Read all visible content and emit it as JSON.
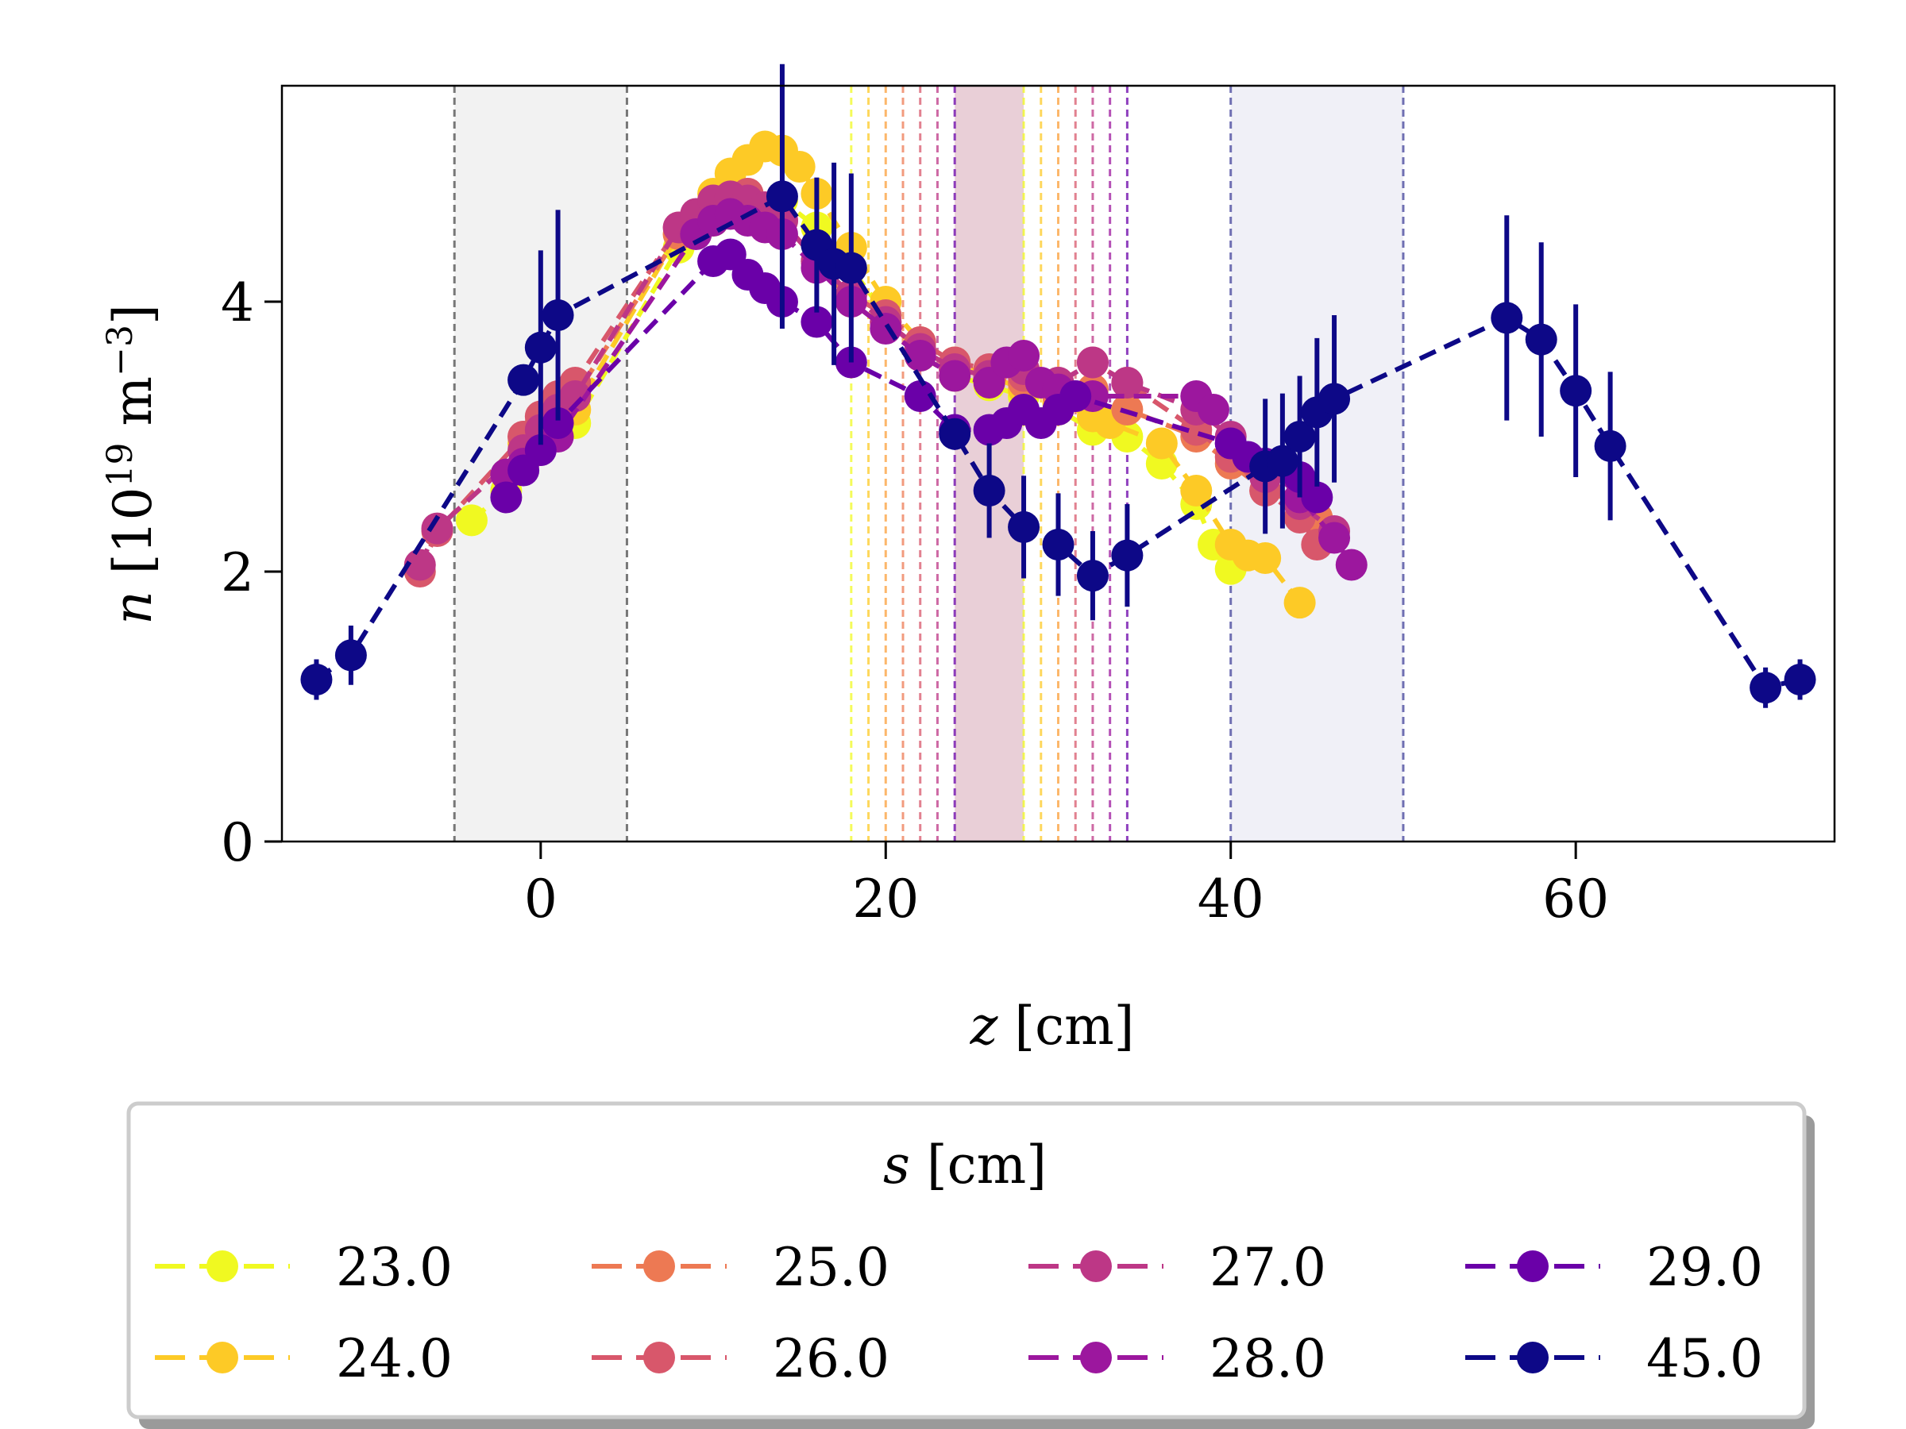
{
  "chart_data": {
    "type": "line",
    "xlabel": "z [cm]",
    "ylabel": "n [10^19 m^-3]",
    "xlim": [
      -15,
      75
    ],
    "ylim": [
      0,
      5.6
    ],
    "x_ticks": [
      0,
      20,
      40,
      60
    ],
    "x_tick_labels": [
      "0",
      "20",
      "40",
      "60"
    ],
    "y_ticks": [
      0,
      2,
      4
    ],
    "y_tick_labels": [
      "0",
      "2",
      "4"
    ],
    "shaded_regions": [
      {
        "z_min": -5,
        "z_max": 5,
        "color": "#dddddd",
        "edge_color": "#777777"
      },
      {
        "z_min": 40,
        "z_max": 50,
        "color": "#d8d8ea",
        "edge_color": "#6f6fb2"
      }
    ],
    "vertical_lines": [
      {
        "z": 18,
        "color": "#f0f921"
      },
      {
        "z": 19,
        "color": "#fdca26"
      },
      {
        "z": 20,
        "color": "#fb9f3a"
      },
      {
        "z": 21,
        "color": "#ed7953"
      },
      {
        "z": 22,
        "color": "#d8576b"
      },
      {
        "z": 23,
        "color": "#bd3786"
      },
      {
        "z": 24,
        "color": "#6a00a8"
      },
      {
        "z": 28,
        "color": "#f0f921"
      },
      {
        "z": 29,
        "color": "#fdca26"
      },
      {
        "z": 30,
        "color": "#fb9f3a"
      },
      {
        "z": 31,
        "color": "#d8576b"
      },
      {
        "z": 32,
        "color": "#bd3786"
      },
      {
        "z": 33,
        "color": "#9c179e"
      },
      {
        "z": 34,
        "color": "#6a00a8"
      }
    ],
    "band": {
      "z_min": 24,
      "z_max": 28,
      "color": "#d7a8b6"
    },
    "legend": {
      "title": "s [cm]",
      "position": "below",
      "columns": 4
    },
    "series": [
      {
        "name": "23.0",
        "color": "#f0f921",
        "x": [
          -4,
          -2,
          -1,
          0,
          1,
          2,
          8,
          10,
          12,
          14,
          16,
          18,
          20,
          22,
          24,
          26,
          28,
          30,
          32,
          34,
          36,
          38,
          39,
          40
        ],
        "y": [
          2.38,
          2.6,
          2.8,
          2.98,
          3.02,
          3.1,
          4.4,
          4.6,
          4.7,
          4.75,
          4.55,
          4.25,
          3.9,
          3.6,
          3.45,
          3.38,
          3.3,
          3.2,
          3.05,
          3.0,
          2.8,
          2.5,
          2.2,
          2.02
        ]
      },
      {
        "name": "24.0",
        "color": "#fdca26",
        "x": [
          -1,
          0,
          1,
          2,
          8,
          10,
          11,
          12,
          13,
          14,
          15,
          16,
          18,
          20,
          22,
          24,
          26,
          28,
          30,
          32,
          33,
          36,
          38,
          40,
          41,
          42,
          44
        ],
        "y": [
          2.95,
          3.05,
          3.15,
          3.2,
          4.5,
          4.8,
          4.95,
          5.05,
          5.15,
          5.12,
          5.0,
          4.8,
          4.4,
          4.0,
          3.7,
          3.55,
          3.45,
          3.35,
          3.25,
          3.15,
          3.1,
          2.95,
          2.6,
          2.2,
          2.12,
          2.1,
          1.77
        ]
      },
      {
        "name": "25.0",
        "color": "#ed7953",
        "x": [
          -1,
          0,
          1,
          2,
          8,
          10,
          12,
          14,
          16,
          18,
          20,
          22,
          24,
          26,
          28,
          30,
          32,
          34,
          38,
          40,
          42,
          44,
          45
        ],
        "y": [
          3.0,
          3.1,
          3.2,
          3.3,
          4.5,
          4.7,
          4.8,
          4.6,
          4.3,
          4.0,
          3.85,
          3.65,
          3.5,
          3.45,
          3.4,
          3.3,
          3.35,
          3.2,
          3.0,
          2.8,
          2.6,
          2.5,
          2.4
        ]
      },
      {
        "name": "26.0",
        "color": "#d8576b",
        "x": [
          -7,
          -6,
          -1,
          0,
          1,
          2,
          8,
          10,
          12,
          14,
          16,
          18,
          20,
          22,
          24,
          26,
          28,
          30,
          32,
          34,
          38,
          40,
          42,
          44,
          45
        ],
        "y": [
          2.0,
          2.3,
          3.0,
          3.15,
          3.3,
          3.4,
          4.55,
          4.75,
          4.8,
          4.6,
          4.3,
          4.05,
          3.9,
          3.7,
          3.55,
          3.5,
          3.45,
          3.4,
          3.55,
          3.4,
          3.05,
          2.85,
          2.6,
          2.4,
          2.2
        ]
      },
      {
        "name": "27.0",
        "color": "#bd3786",
        "x": [
          -7,
          -6,
          -1,
          0,
          1,
          2,
          8,
          9,
          10,
          11,
          12,
          13,
          14,
          16,
          18,
          20,
          22,
          24,
          26,
          28,
          30,
          32,
          34,
          38,
          40,
          42,
          44,
          46
        ],
        "y": [
          2.05,
          2.32,
          2.9,
          3.05,
          3.2,
          3.3,
          4.55,
          4.65,
          4.75,
          4.78,
          4.75,
          4.7,
          4.6,
          4.3,
          4.05,
          3.85,
          3.65,
          3.5,
          3.45,
          3.5,
          3.4,
          3.55,
          3.4,
          3.2,
          3.0,
          2.7,
          2.5,
          2.3
        ]
      },
      {
        "name": "28.0",
        "color": "#9c179e",
        "x": [
          -2,
          -1,
          0,
          1,
          9,
          10,
          11,
          12,
          13,
          14,
          16,
          18,
          20,
          22,
          24,
          26,
          27,
          28,
          29,
          30,
          31,
          32,
          38,
          39,
          40,
          42,
          44,
          46,
          47
        ],
        "y": [
          2.72,
          2.8,
          2.9,
          3.0,
          4.5,
          4.6,
          4.65,
          4.6,
          4.55,
          4.5,
          4.25,
          4.0,
          3.8,
          3.6,
          3.45,
          3.4,
          3.55,
          3.6,
          3.4,
          3.35,
          3.3,
          3.3,
          3.3,
          3.2,
          2.95,
          2.8,
          2.55,
          2.25,
          2.05
        ]
      },
      {
        "name": "29.0",
        "color": "#6a00a8",
        "x": [
          -2,
          -1,
          0,
          1,
          10,
          11,
          12,
          13,
          14,
          16,
          18,
          22,
          24,
          26,
          27,
          28,
          29,
          30,
          31,
          40,
          41,
          42,
          44,
          45
        ],
        "y": [
          2.55,
          2.75,
          2.9,
          3.1,
          4.3,
          4.35,
          4.2,
          4.1,
          4.0,
          3.85,
          3.55,
          3.3,
          3.05,
          3.05,
          3.1,
          3.2,
          3.1,
          3.2,
          3.3,
          2.95,
          2.85,
          2.8,
          2.7,
          2.55
        ]
      },
      {
        "name": "45.0",
        "color": "#0d0887",
        "x": [
          -13,
          -11,
          -1,
          0,
          1,
          14,
          16,
          17,
          18,
          24,
          26,
          28,
          30,
          32,
          34,
          42,
          43,
          44,
          45,
          46,
          56,
          58,
          60,
          62,
          71,
          73
        ],
        "y": [
          1.2,
          1.38,
          3.42,
          3.66,
          3.9,
          4.78,
          4.42,
          4.28,
          4.25,
          3.02,
          2.6,
          2.33,
          2.2,
          1.97,
          2.12,
          2.78,
          2.82,
          3.0,
          3.18,
          3.28,
          3.88,
          3.72,
          3.34,
          2.93,
          1.14,
          1.2
        ],
        "yerr": [
          0.15,
          0.22,
          0.0,
          0.72,
          0.78,
          0.98,
          0.5,
          0.75,
          0.7,
          0.0,
          0.35,
          0.38,
          0.38,
          0.33,
          0.38,
          0.5,
          0.5,
          0.45,
          0.55,
          0.62,
          0.76,
          0.72,
          0.64,
          0.55,
          0.15,
          0.15
        ]
      }
    ]
  }
}
